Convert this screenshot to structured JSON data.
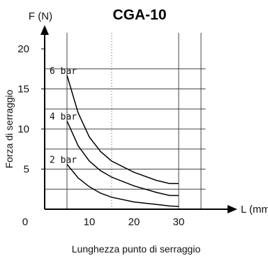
{
  "chart_data": {
    "type": "line",
    "title": "CGA-10",
    "ylabel_axis_head": "F (N)",
    "xlabel_axis_head": "L (mm)",
    "ylabel": "Forza di serraggio",
    "xlabel": "Lunghezza punto di serraggio",
    "xlim": [
      0,
      36
    ],
    "ylim": [
      0,
      22
    ],
    "x_ticks": [
      "0",
      "10",
      "20",
      "30"
    ],
    "y_ticks": [
      "5",
      "10",
      "15",
      "20"
    ],
    "grid": true,
    "series": [
      {
        "name": "6 bar",
        "x": [
          5,
          7.5,
          10,
          12.5,
          15,
          20,
          25,
          28,
          30
        ],
        "y": [
          16.7,
          12,
          9,
          7.2,
          6,
          4.6,
          3.6,
          3.2,
          3.2
        ]
      },
      {
        "name": "4 bar",
        "x": [
          5,
          7.5,
          10,
          12.5,
          15,
          20,
          25,
          28,
          30
        ],
        "y": [
          11,
          7.9,
          6.0,
          4.8,
          4.0,
          2.9,
          2.1,
          1.7,
          1.7
        ]
      },
      {
        "name": "2 bar",
        "x": [
          5,
          7.5,
          10,
          12.5,
          15,
          20,
          25,
          28,
          30
        ],
        "y": [
          5.6,
          3.9,
          2.8,
          2.0,
          1.5,
          0.9,
          0.6,
          0.4,
          0.35
        ]
      }
    ]
  }
}
